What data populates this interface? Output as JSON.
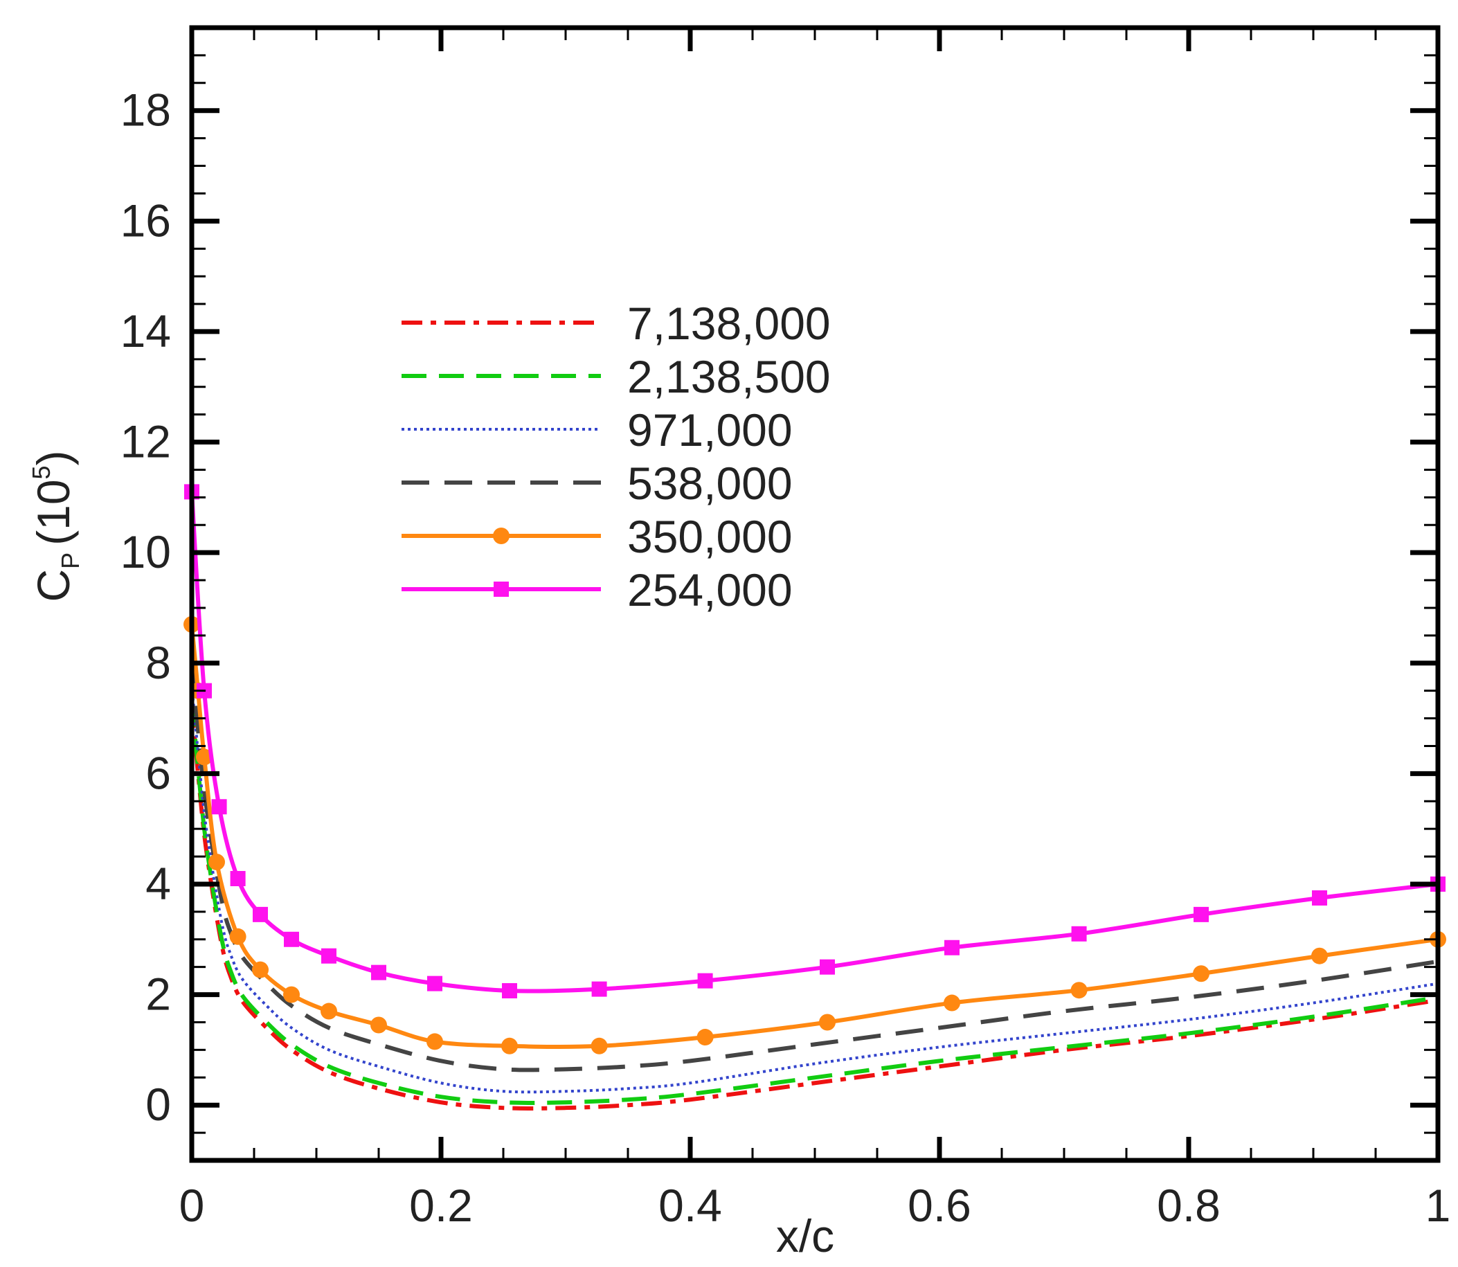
{
  "chart_data": {
    "type": "line",
    "title": "",
    "xlabel": "x/c",
    "ylabel": {
      "base": "C",
      "sub": "P",
      "paren_open": "(10",
      "sup": "5",
      "paren_close": ")"
    },
    "xlim": [
      0,
      1
    ],
    "ylim": [
      -1,
      19.5
    ],
    "x_ticks": [
      {
        "value": 0,
        "label": "0"
      },
      {
        "value": 0.2,
        "label": "0.2"
      },
      {
        "value": 0.4,
        "label": "0.4"
      },
      {
        "value": 0.6,
        "label": "0.6"
      },
      {
        "value": 0.8,
        "label": "0.8"
      },
      {
        "value": 1,
        "label": "1"
      }
    ],
    "y_ticks": [
      {
        "value": 0,
        "label": "0"
      },
      {
        "value": 2,
        "label": "2"
      },
      {
        "value": 4,
        "label": "4"
      },
      {
        "value": 6,
        "label": "6"
      },
      {
        "value": 8,
        "label": "8"
      },
      {
        "value": 10,
        "label": "10"
      },
      {
        "value": 12,
        "label": "12"
      },
      {
        "value": 14,
        "label": "14"
      },
      {
        "value": 16,
        "label": "16"
      },
      {
        "value": 18,
        "label": "18"
      }
    ],
    "grid": false,
    "legend_position": "upper-center",
    "series": [
      {
        "name": "7,138,000",
        "color": "#ee1111",
        "dash": "dashdot",
        "marker": "none",
        "x": [
          0,
          0.005,
          0.01,
          0.015,
          0.02,
          0.025,
          0.03,
          0.04,
          0.06,
          0.08,
          0.11,
          0.15,
          0.2,
          0.25,
          0.3,
          0.35,
          0.4,
          0.5,
          0.6,
          0.7,
          0.8,
          0.9,
          1.0
        ],
        "y": [
          7.2,
          6.0,
          4.9,
          4.1,
          3.4,
          2.8,
          2.4,
          1.9,
          1.4,
          1.0,
          0.6,
          0.3,
          0.05,
          -0.05,
          -0.05,
          0.0,
          0.1,
          0.4,
          0.7,
          1.0,
          1.25,
          1.55,
          1.9
        ]
      },
      {
        "name": "2,138,500",
        "color": "#11cc11",
        "dash": "dash",
        "marker": "none",
        "x": [
          0,
          0.005,
          0.01,
          0.015,
          0.02,
          0.025,
          0.03,
          0.04,
          0.06,
          0.08,
          0.11,
          0.15,
          0.2,
          0.25,
          0.3,
          0.35,
          0.4,
          0.5,
          0.6,
          0.7,
          0.8,
          0.9,
          1.0
        ],
        "y": [
          7.3,
          6.1,
          5.0,
          4.2,
          3.5,
          2.9,
          2.5,
          2.0,
          1.5,
          1.1,
          0.7,
          0.4,
          0.15,
          0.05,
          0.05,
          0.1,
          0.2,
          0.5,
          0.8,
          1.05,
          1.3,
          1.6,
          1.95
        ]
      },
      {
        "name": "971,000",
        "color": "#3344cc",
        "dash": "dot",
        "marker": "none",
        "x": [
          0,
          0.005,
          0.01,
          0.015,
          0.02,
          0.025,
          0.03,
          0.04,
          0.06,
          0.08,
          0.11,
          0.15,
          0.2,
          0.25,
          0.3,
          0.35,
          0.4,
          0.5,
          0.6,
          0.7,
          0.8,
          0.9,
          1.0
        ],
        "y": [
          7.6,
          6.4,
          5.3,
          4.5,
          3.8,
          3.2,
          2.8,
          2.3,
          1.8,
          1.4,
          1.0,
          0.7,
          0.4,
          0.25,
          0.25,
          0.3,
          0.4,
          0.75,
          1.05,
          1.3,
          1.55,
          1.85,
          2.2
        ]
      },
      {
        "name": "538,000",
        "color": "#444444",
        "dash": "longdash",
        "marker": "none",
        "x": [
          0,
          0.005,
          0.01,
          0.015,
          0.02,
          0.025,
          0.03,
          0.04,
          0.06,
          0.08,
          0.11,
          0.15,
          0.2,
          0.25,
          0.3,
          0.35,
          0.4,
          0.5,
          0.6,
          0.7,
          0.8,
          0.9,
          1.0
        ],
        "y": [
          8.0,
          6.8,
          5.7,
          4.9,
          4.2,
          3.6,
          3.2,
          2.7,
          2.2,
          1.8,
          1.4,
          1.1,
          0.8,
          0.65,
          0.65,
          0.7,
          0.8,
          1.1,
          1.4,
          1.7,
          1.95,
          2.25,
          2.6
        ]
      },
      {
        "name": "350,000",
        "color": "#ff8811",
        "dash": "solid",
        "marker": "circle",
        "x": [
          0,
          0.005,
          0.01,
          0.02,
          0.037,
          0.055,
          0.08,
          0.11,
          0.15,
          0.195,
          0.255,
          0.327,
          0.412,
          0.51,
          0.61,
          0.712,
          0.81,
          0.905,
          1.0
        ],
        "y": [
          8.7,
          7.5,
          6.3,
          4.4,
          3.05,
          2.45,
          2.0,
          1.7,
          1.45,
          1.15,
          1.07,
          1.07,
          1.23,
          1.5,
          1.85,
          2.08,
          2.38,
          2.7,
          3.0
        ]
      },
      {
        "name": "254,000",
        "color": "#ff11ee",
        "dash": "solid",
        "marker": "square",
        "x": [
          0,
          0.01,
          0.022,
          0.037,
          0.055,
          0.08,
          0.11,
          0.15,
          0.195,
          0.255,
          0.327,
          0.412,
          0.51,
          0.61,
          0.712,
          0.81,
          0.905,
          1.0
        ],
        "y": [
          11.1,
          7.5,
          5.4,
          4.1,
          3.45,
          3.0,
          2.7,
          2.4,
          2.2,
          2.07,
          2.1,
          2.25,
          2.5,
          2.85,
          3.1,
          3.45,
          3.75,
          4.0
        ]
      }
    ]
  }
}
